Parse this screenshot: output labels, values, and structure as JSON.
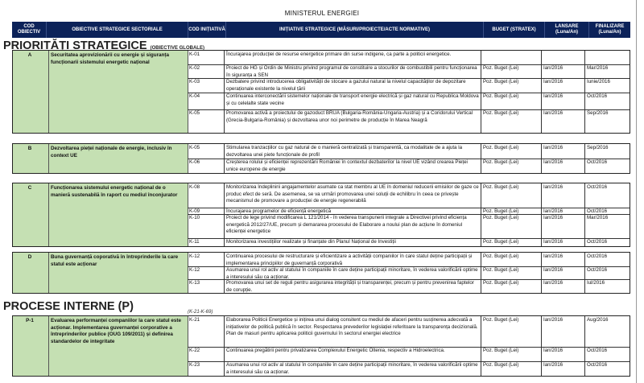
{
  "title": "MINISTERUL ENERGIEI",
  "header": {
    "cod_obiectiv": "COD OBIECTIV",
    "obiective": "OBIECTIVE STRATEGICE SECTORIALE",
    "cod_initiativa": "COD INIȚIATIVĂ",
    "initiative": "INIȚIATIVE STRATEGICE (MĂSURI/PROIECTE/ACTE NORMATIVE)",
    "buget": "BUGET (STRATEX)",
    "lansare": "LANSARE (Luna/An)",
    "finalizare": "FINALIZARE (Luna/An)"
  },
  "sections": [
    {
      "title": "PRIORITĂȚI STRATEGICE",
      "subtitle": "(OBIECTIVE GLOBALE)",
      "note": "",
      "groups": [
        {
          "code": "A",
          "objective": "Securitatea aprovizionării cu energie și siguranța funcționarii sistemului energetic național",
          "initiatives": [
            {
              "code": "K-01",
              "text": "Încurajarea producției de resurse energetice primare din surse indigene, ca parte a politicii energetice.",
              "budget": "",
              "launch": "",
              "end": ""
            },
            {
              "code": "K-02",
              "text": "Proiect de HG și Ordin de Ministru privind programul de constituire a stocurilor de combustibili pentru funcționarea în siguranța a SEN",
              "budget": "Poz. Buget (Lei)",
              "launch": "Ian/2016",
              "end": "Mar/2016"
            },
            {
              "code": "K-03",
              "text": "Dezbatere privind introducerea obligativității de stocare a gazului natural la nivelul capacităților de depozitare operaționale existente la nivelul țării",
              "budget": "Poz. Buget (Lei)",
              "launch": "Ian/2016",
              "end": "Iunie/2016"
            },
            {
              "code": "K-04",
              "text": "Continuarea interconectării sistemelor naționale de transport energie electrică și gaz natural cu Republica Moldova și cu celelalte state vecine",
              "budget": "Poz. Buget (Lei)",
              "launch": "Ian/2016",
              "end": "Oct/2016"
            },
            {
              "code": "K-05",
              "text": "Promovarea activă a proiectului de gazoduct BRUA (Bulgaria-România-Ungaria-Austria) și a Coridorului Vertical (Grecia-Bulgaria-România) și dezvoltarea unor noi perimetre de producție în Marea Neagră",
              "budget": "Poz. Buget (Lei)",
              "launch": "Ian/2016",
              "end": "Sep/2016"
            }
          ]
        },
        {
          "code": "B",
          "objective": "Dezvoltarea pieței naționale de energie, inclusiv în context UE",
          "initiatives": [
            {
              "code": "K-05",
              "text": "Stimularea tranzacțiilor cu gaz natural de o manieră centralizată și transparentă, ca modalitate de a ajuta la dezvoltarea unei piete funcționale de profil",
              "budget": "Poz. Buget (Lei)",
              "launch": "Ian/2016",
              "end": "Sep/2016"
            },
            {
              "code": "K-06",
              "text": "Creșterea rolului și eficienței reprezentării României în contextul dezbaterilor la nivel UE vizând crearea Pieței unice europene de energie",
              "budget": "Poz. Buget (Lei)",
              "launch": "Ian/2016",
              "end": "Oct/2016"
            }
          ]
        },
        {
          "code": "C",
          "objective": "Funcționarea sistemului energetic național de o manieră sustenabilă în raport cu mediul înconjurator",
          "initiatives": [
            {
              "code": "K-08",
              "text": "Monitorizarea îndeplinirii angajamentelor asumate ca stat membru al UE în domeniul reducerii emisiilor de gaze ce produc efect de seră. De asemenea, se va urmări promovarea unei soluții de echilibru în ceea ce privește mecanismul de promovare a producției de energie regenerabilă",
              "budget": "Poz. Buget (Lei)",
              "launch": "Ian/2016",
              "end": "Oct/2016"
            },
            {
              "code": "K-09",
              "text": "Încurajarea programelor de eficiență energetică",
              "budget": "Poz. Buget (Lei)",
              "launch": "Ian/2016",
              "end": "Oct/2016"
            },
            {
              "code": "K-10",
              "text": "Proiect de lege privind modificarea L 121/2014 - în vederea transpunerii integrale a Directivei privind eficiența energetică 2012/27/UE, precum și demararea procesului de Elaborare a noului plan de acțiune în domeniul eficienței energetice",
              "budget": "Poz. Buget (Lei)",
              "launch": "Ian/2016",
              "end": "Mar/2016"
            },
            {
              "code": "K-11",
              "text": "Monitorizarea investițiilor realizate și finanțate din Planul Național de Investiții",
              "budget": "Poz. Buget (Lei)",
              "launch": "Ian/2016",
              "end": "Oct/2016"
            }
          ]
        },
        {
          "code": "D",
          "objective": "Buna guvernanță coporativă în întreprinderile la care statul este acționar",
          "initiatives": [
            {
              "code": "K-12",
              "text": "Continuarea procesului de restructurare și eficientizare a activității companiilor în care statul deține participații și implementarea principiilor de guvernanță corporativă",
              "budget": "Poz. Buget (Lei)",
              "launch": "Ian/2016",
              "end": "Oct/2016"
            },
            {
              "code": "K-12",
              "text": "Asumarea unui rol activ al statului în companiile în care deține participații minoritare, în vederea valorificării optime a interesului său ca acționar.",
              "budget": "Poz. Buget (Lei)",
              "launch": "Ian/2016",
              "end": "Oct/2016"
            },
            {
              "code": "K-13",
              "text": "Promovarea unui set de reguli pentru asigurarea integrității și transparenței, precum și pentru prevenirea faptelor de corupție.",
              "budget": "Poz. Buget (Lei)",
              "launch": "Ian/2016",
              "end": "Iul/2016"
            }
          ]
        }
      ]
    },
    {
      "title": "PROCESE INTERNE (P)",
      "subtitle": "",
      "note": "(K-21-K-69)",
      "groups": [
        {
          "code": "P-1",
          "objective": "Evaluarea performanței companiilor la care statul este acționar. Implementarea guvernanței corporative a întreprinderilor publice (OUG 109/2011) și definirea standardelor de integritate",
          "initiatives": [
            {
              "code": "K-21",
              "text": "Elaborarea Politicii Energetice și inițirea unui dialog consitent cu mediul de afaceri pentru susținerea adecvată a inițiativelor de politică publică în sector. Respectarea prevederilor legislației referitoare la transparența decizională. Plan de masuri pentru aplicarea politicii guvernului în sectorul energiei electrice",
              "budget": "Poz. Buget (Lei)",
              "launch": "Ian/2016",
              "end": "Aug/2016"
            },
            {
              "code": "K-22",
              "text": "Continuarea pregătirii pentru privatizarea Complexului Energetic Oltenia, respectiv a Hidroelectrica.",
              "budget": "Poz. Buget (Lei)",
              "launch": "Ian/2016",
              "end": "Oct/2016"
            },
            {
              "code": "K-23",
              "text": "Asumarea unui rol activ al statului în companiile în care deține participații minoritare, în vederea valorificării optime a interesului său ca acționar.",
              "budget": "Poz. Buget (Lei)",
              "launch": "Ian/2016",
              "end": "Oct/2016"
            }
          ]
        }
      ]
    }
  ]
}
